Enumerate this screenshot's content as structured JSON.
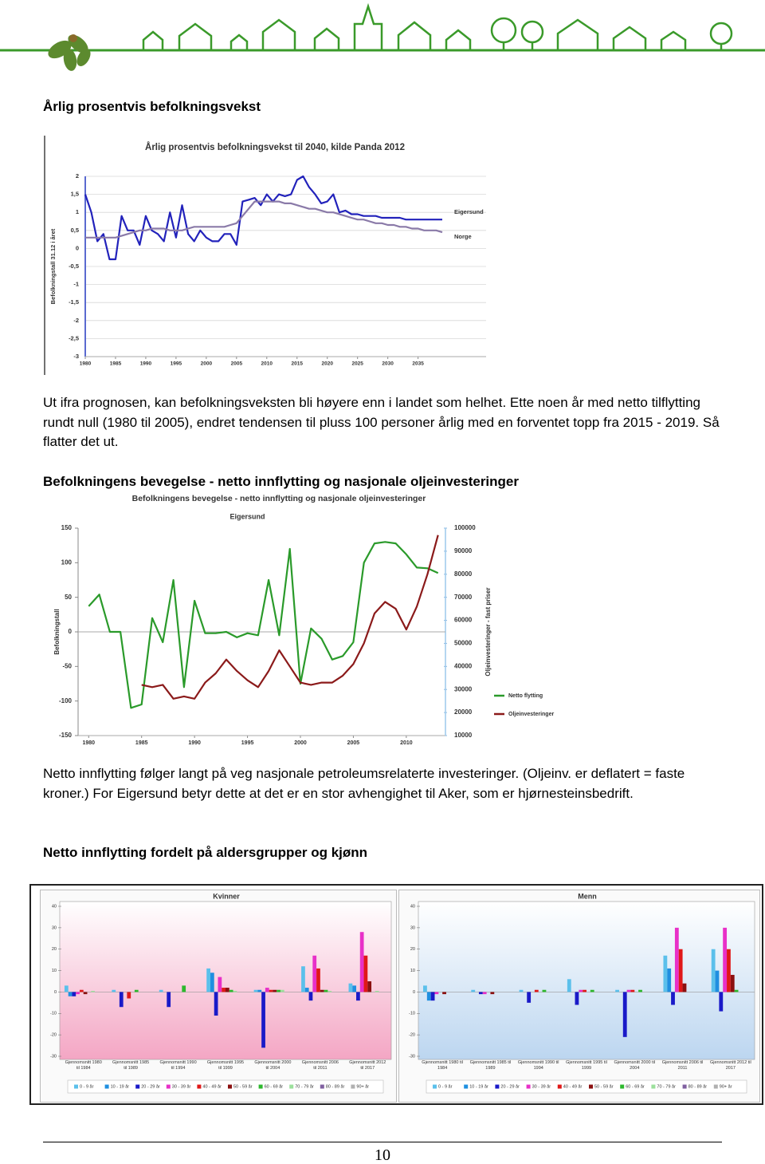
{
  "headings": [
    "Årlig prosentvis befolkningsvekst",
    "Befolkningens bevegelse - netto innflytting og nasjonale oljeinvesteringer",
    "Netto innflytting fordelt på aldersgrupper og kjønn"
  ],
  "paragraphs": [
    "Ut ifra prognosen, kan befolkningsveksten bli høyere enn i landet som helhet. Ette noen år med netto tilflytting rundt null (1980 til 2005), endret tendensen til pluss 100 personer årlig med en forventet topp fra 2015 - 2019. Så flatter det ut.",
    "Netto innflytting følger langt på veg nasjonale petroleumsrelaterte investeringer. (Oljeinv. er deflatert = faste kroner.) For Eigersund betyr dette at det er en stor avhengighet til Aker, som er hjørnesteinsbedrift."
  ],
  "page_number": 10,
  "chart_data": [
    {
      "type": "line",
      "title": "Årlig prosentvis befolkningsvekst til 2040, kilde Panda 2012",
      "ylabel": "Befolkningstall 31.12 i året",
      "x": [
        1980,
        1981,
        1982,
        1983,
        1984,
        1985,
        1986,
        1987,
        1988,
        1989,
        1990,
        1991,
        1992,
        1993,
        1994,
        1995,
        1996,
        1997,
        1998,
        1999,
        2000,
        2001,
        2002,
        2003,
        2004,
        2005,
        2006,
        2007,
        2008,
        2009,
        2010,
        2011,
        2012,
        2013,
        2014,
        2015,
        2016,
        2017,
        2018,
        2019,
        2020,
        2021,
        2022,
        2023,
        2024,
        2025,
        2026,
        2027,
        2028,
        2029,
        2030,
        2031,
        2032,
        2033,
        2034,
        2035,
        2036,
        2037,
        2038,
        2039
      ],
      "series": [
        {
          "name": "Eigersund",
          "color": "#2222bb",
          "values": [
            1.5,
            1.0,
            0.2,
            0.4,
            -0.3,
            -0.3,
            0.9,
            0.5,
            0.5,
            0.1,
            0.9,
            0.5,
            0.4,
            0.2,
            1.0,
            0.3,
            1.2,
            0.4,
            0.2,
            0.5,
            0.3,
            0.2,
            0.2,
            0.4,
            0.4,
            0.1,
            1.3,
            1.35,
            1.4,
            1.2,
            1.5,
            1.3,
            1.5,
            1.45,
            1.5,
            1.9,
            2.0,
            1.7,
            1.5,
            1.25,
            1.3,
            1.5,
            1.0,
            1.05,
            0.95,
            0.95,
            0.9,
            0.9,
            0.9,
            0.85,
            0.85,
            0.85,
            0.85,
            0.8,
            0.8,
            0.8,
            0.8,
            0.8,
            0.8,
            0.8
          ]
        },
        {
          "name": "Norge",
          "color": "#8a7aa8",
          "values": [
            0.3,
            0.3,
            0.3,
            0.3,
            0.3,
            0.3,
            0.35,
            0.4,
            0.45,
            0.5,
            0.5,
            0.55,
            0.55,
            0.55,
            0.5,
            0.5,
            0.5,
            0.55,
            0.6,
            0.6,
            0.6,
            0.6,
            0.6,
            0.6,
            0.65,
            0.7,
            0.9,
            1.1,
            1.3,
            1.3,
            1.3,
            1.3,
            1.3,
            1.25,
            1.25,
            1.2,
            1.15,
            1.1,
            1.1,
            1.05,
            1.0,
            1.0,
            0.95,
            0.9,
            0.85,
            0.8,
            0.8,
            0.75,
            0.7,
            0.7,
            0.65,
            0.65,
            0.6,
            0.6,
            0.55,
            0.55,
            0.5,
            0.5,
            0.5,
            0.45
          ]
        }
      ],
      "xlim": [
        1980,
        2039
      ],
      "xticks": [
        1980,
        1985,
        1990,
        1995,
        2000,
        2005,
        2010,
        2015,
        2020,
        2025,
        2030,
        2035
      ],
      "ylim": [
        -3,
        2
      ],
      "yticks": [
        2,
        {
          "value": 1.5,
          "label": "1,5"
        },
        1,
        {
          "value": 0.5,
          "label": "0,5"
        },
        0,
        {
          "value": -0.5,
          "label": "-0,5"
        },
        -1,
        {
          "value": -1.5,
          "label": "-1,5"
        },
        -2,
        {
          "value": -2.5,
          "label": "-2,5"
        },
        -3
      ],
      "grid": true,
      "legend": "right"
    },
    {
      "type": "line",
      "title": "Befolkningens bevegelse - netto innflytting og nasjonale oljeinvesteringer",
      "subtitle": "Eigersund",
      "ylabel": "Befolkningstall",
      "y2label": "Oljeinvesteringer - fast priser",
      "x": [
        1980,
        1981,
        1982,
        1983,
        1984,
        1985,
        1986,
        1987,
        1988,
        1989,
        1990,
        1991,
        1992,
        1993,
        1994,
        1995,
        1996,
        1997,
        1998,
        1999,
        2000,
        2001,
        2002,
        2003,
        2004,
        2005,
        2006,
        2007,
        2008,
        2009,
        2010,
        2011,
        2012,
        2013
      ],
      "series": [
        {
          "name": "Netto flytting",
          "color": "#2a9a2a",
          "values": [
            37,
            54,
            0,
            0,
            -110,
            -105,
            20,
            -15,
            75,
            -80,
            45,
            -2,
            -2,
            0,
            -8,
            -2,
            -5,
            75,
            -5,
            120,
            -75,
            5,
            -10,
            -40,
            -35,
            -15,
            100,
            128,
            130,
            128,
            112,
            93,
            92,
            85
          ]
        },
        {
          "name": "Oljeinvesteringer",
          "color": "#8b1a1a",
          "axis": "y2",
          "values": [
            null,
            null,
            null,
            null,
            null,
            32000,
            31000,
            32000,
            26000,
            27000,
            26000,
            33000,
            37000,
            43000,
            38000,
            34000,
            31000,
            38000,
            47000,
            40000,
            33000,
            32000,
            33000,
            33000,
            36000,
            41000,
            50000,
            63000,
            68000,
            65000,
            56000,
            66000,
            80000,
            97000
          ]
        }
      ],
      "xlim": [
        1979,
        2014
      ],
      "xticks": [
        1980,
        1985,
        1990,
        1995,
        2000,
        2005,
        2010
      ],
      "ylim": [
        -150,
        150
      ],
      "yticks": [
        150,
        100,
        50,
        0,
        -50,
        -100,
        -150
      ],
      "y2lim": [
        10000,
        100000
      ],
      "y2ticks": [
        100000,
        90000,
        80000,
        70000,
        60000,
        50000,
        40000,
        30000,
        20000,
        10000
      ],
      "grid": false,
      "legend": "lower right"
    },
    {
      "type": "bar",
      "title": "Kvinner",
      "title_color": "#d81e5b",
      "plot_color": "#f4a6c4",
      "categories": [
        "Gjennomsnitt 1980 til 1984",
        "Gjennomsnitt 1985 til 1989",
        "Gjennomsnitt 1990 til 1994",
        "Gjennomsnitt 1995 til 1999",
        "Gjennomsnitt 2000 til 2004",
        "Gjennomsnitt 2006 til 2011",
        "Gjennomsnitt 2012 til 2017"
      ],
      "series": [
        {
          "name": "0 - 9 år",
          "color": "#5bc0eb",
          "values": [
            3,
            1,
            1,
            11,
            1,
            12,
            4
          ]
        },
        {
          "name": "10 - 19 år",
          "color": "#1f8fe0",
          "values": [
            -2,
            0,
            0,
            9,
            1,
            2,
            3
          ]
        },
        {
          "name": "20 - 29 år",
          "color": "#1a1ac8",
          "values": [
            -2,
            -7,
            -7,
            -11,
            -26,
            -4,
            -4
          ]
        },
        {
          "name": "30 - 39 år",
          "color": "#e830c8",
          "values": [
            -1,
            0,
            0,
            7,
            2,
            17,
            28
          ]
        },
        {
          "name": "40 - 49 år",
          "color": "#e01818",
          "values": [
            1,
            -3,
            0,
            2,
            1,
            11,
            17
          ]
        },
        {
          "name": "50 - 59 år",
          "color": "#8b1010",
          "values": [
            -1,
            0,
            0,
            2,
            1,
            1,
            5
          ]
        },
        {
          "name": "60 - 69 år",
          "color": "#2db82d",
          "values": [
            0,
            1,
            3,
            1,
            1,
            1,
            0
          ]
        },
        {
          "name": "70 - 79 år",
          "color": "#9be09b",
          "values": [
            0.5,
            0,
            0,
            0.5,
            1,
            0.5,
            0.5
          ]
        },
        {
          "name": "80 - 89 år",
          "color": "#8060a0",
          "values": [
            0,
            0,
            0,
            0,
            0,
            0,
            0
          ]
        },
        {
          "name": "90+ år",
          "color": "#b0b0b0",
          "values": [
            0,
            0,
            0,
            0,
            0,
            0,
            0
          ]
        }
      ],
      "ylim": [
        -30,
        40
      ],
      "yticks": [
        -30,
        -20,
        -10,
        0,
        10,
        20,
        30,
        40
      ]
    },
    {
      "type": "bar",
      "title": "Menn",
      "title_color": "#1f3f9f",
      "plot_color": "#bcd6f0",
      "categories": [
        "Gjennomsnitt 1980 til 1984",
        "Gjennomsnitt 1985 til 1989",
        "Gjennomsnitt 1990 til 1994",
        "Gjennomsnitt 1995 til 1999",
        "Gjennomsnitt 2000 til 2004",
        "Gjennomsnitt 2006 til 2011",
        "Gjennomsnitt 2012 til 2017"
      ],
      "series": [
        {
          "name": "0 - 9 år",
          "color": "#5bc0eb",
          "values": [
            3,
            1,
            1,
            6,
            1,
            17,
            20
          ]
        },
        {
          "name": "10 - 19 år",
          "color": "#1f8fe0",
          "values": [
            -4,
            0,
            0,
            0,
            0,
            11,
            10
          ]
        },
        {
          "name": "20 - 29 år",
          "color": "#1a1ac8",
          "values": [
            -4,
            -1,
            -5,
            -6,
            -21,
            -6,
            -9
          ]
        },
        {
          "name": "30 - 39 år",
          "color": "#e830c8",
          "values": [
            -1,
            -1,
            0,
            1,
            1,
            30,
            30
          ]
        },
        {
          "name": "40 - 49 år",
          "color": "#e01818",
          "values": [
            0,
            0,
            1,
            1,
            1,
            20,
            20
          ]
        },
        {
          "name": "50 - 59 år",
          "color": "#8b1010",
          "values": [
            -1,
            -1,
            0,
            0,
            0,
            4,
            8
          ]
        },
        {
          "name": "60 - 69 år",
          "color": "#2db82d",
          "values": [
            0,
            0,
            1,
            1,
            1,
            0,
            1
          ]
        },
        {
          "name": "70 - 79 år",
          "color": "#9be09b",
          "values": [
            0,
            0,
            0,
            0,
            0,
            0,
            0
          ]
        },
        {
          "name": "80 - 89 år",
          "color": "#8060a0",
          "values": [
            0,
            0,
            0,
            0,
            0,
            0,
            0
          ]
        },
        {
          "name": "90+ år",
          "color": "#b0b0b0",
          "values": [
            0,
            0,
            0,
            0,
            0,
            0,
            0
          ]
        }
      ],
      "ylim": [
        -30,
        40
      ],
      "yticks": [
        -30,
        -20,
        -10,
        0,
        10,
        20,
        30,
        40
      ]
    }
  ]
}
